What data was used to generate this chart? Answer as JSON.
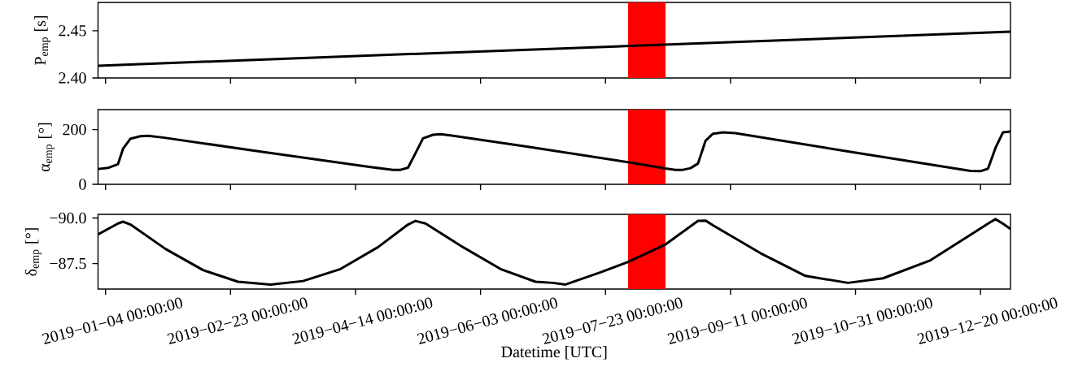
{
  "chart_data": [
    {
      "type": "line",
      "ylabel": "P$_{emp}$ [s]",
      "xlim": [
        "2019-01-01",
        "2020-01-01"
      ],
      "ylim": [
        2.4,
        2.48
      ],
      "xticks": [
        {
          "value": "2019-01-04",
          "label": null
        },
        {
          "value": "2019-02-23",
          "label": null
        },
        {
          "value": "2019-04-14",
          "label": null
        },
        {
          "value": "2019-06-03",
          "label": null
        },
        {
          "value": "2019-07-23",
          "label": null
        },
        {
          "value": "2019-09-11",
          "label": null
        },
        {
          "value": "2019-10-31",
          "label": null
        },
        {
          "value": "2019-12-20",
          "label": null
        }
      ],
      "yticks": [
        {
          "value": 2.4,
          "label": "2.40"
        },
        2.45
      ],
      "tick_labels": "y",
      "x": [
        "2019-01-01",
        "2020-01-01"
      ],
      "series": [
        {
          "color": "#000000",
          "values": [
            2.413,
            2.449
          ]
        }
      ],
      "bands": [
        {
          "axis": "x",
          "from": "2019-08-01",
          "to": "2019-08-16",
          "color": "#ff0000"
        }
      ]
    },
    {
      "type": "line",
      "ylabel": "α$_{emp}$ [°]",
      "xlim": [
        "2019-01-01",
        "2020-01-01"
      ],
      "ylim": [
        0,
        273
      ],
      "xticks": [
        {
          "value": "2019-01-04",
          "label": null
        },
        {
          "value": "2019-02-23",
          "label": null
        },
        {
          "value": "2019-04-14",
          "label": null
        },
        {
          "value": "2019-06-03",
          "label": null
        },
        {
          "value": "2019-07-23",
          "label": null
        },
        {
          "value": "2019-09-11",
          "label": null
        },
        {
          "value": "2019-10-31",
          "label": null
        },
        {
          "value": "2019-12-20",
          "label": null
        }
      ],
      "yticks": [
        0,
        200
      ],
      "tick_labels": "y",
      "x": [
        "2019-01-01",
        "2019-01-05",
        "2019-01-09",
        "2019-01-11",
        "2019-01-14",
        "2019-01-18",
        "2019-01-21",
        "2019-01-27",
        "2019-03-06",
        "2019-04-20",
        "2019-04-29",
        "2019-05-02",
        "2019-05-05",
        "2019-05-08",
        "2019-05-11",
        "2019-05-15",
        "2019-05-18",
        "2019-05-22",
        "2019-06-22",
        "2019-08-01",
        "2019-08-16",
        "2019-08-20",
        "2019-08-23",
        "2019-08-26",
        "2019-08-29",
        "2019-09-01",
        "2019-09-04",
        "2019-09-08",
        "2019-09-13",
        "2019-10-28",
        "2019-12-16",
        "2019-12-20",
        "2019-12-23",
        "2019-12-26",
        "2019-12-29",
        "2020-01-01"
      ],
      "series": [
        {
          "color": "#000000",
          "values": [
            56,
            60,
            74,
            130,
            167,
            176,
            177,
            171,
            121,
            63,
            53,
            53,
            61,
            114,
            168,
            181,
            183,
            179,
            137,
            81,
            58,
            53,
            53,
            59,
            76,
            159,
            185,
            190,
            187,
            120,
            49,
            48,
            57,
            133,
            190,
            193
          ]
        }
      ],
      "bands": [
        {
          "axis": "x",
          "from": "2019-08-01",
          "to": "2019-08-16",
          "color": "#ff0000"
        }
      ]
    },
    {
      "type": "line",
      "xlabel": "Datetime [UTC]",
      "ylabel": "δ$_{emp}$ [°]",
      "xlim": [
        "2019-01-01",
        "2020-01-01"
      ],
      "ylim": [
        -86.1,
        -90.2
      ],
      "xticks": [
        {
          "value": "2019-01-04",
          "label": "2019−01−04 00:00:00"
        },
        {
          "value": "2019-02-23",
          "label": "2019−02−23 00:00:00"
        },
        {
          "value": "2019-04-14",
          "label": "2019−04−14 00:00:00"
        },
        {
          "value": "2019-06-03",
          "label": "2019−06−03 00:00:00"
        },
        {
          "value": "2019-07-23",
          "label": "2019−07−23 00:00:00"
        },
        {
          "value": "2019-09-11",
          "label": "2019−09−11 00:00:00"
        },
        {
          "value": "2019-10-31",
          "label": "2019−10−31 00:00:00"
        },
        {
          "value": "2019-12-20",
          "label": "2019−12−20 00:00:00"
        }
      ],
      "yticks": [
        {
          "value": -90,
          "label": "−90.0"
        },
        {
          "value": -87.5,
          "label": "−87.5"
        }
      ],
      "x": [
        "2019-01-01",
        "2019-01-09",
        "2019-01-11",
        "2019-01-14",
        "2019-01-28",
        "2019-02-12",
        "2019-02-26",
        "2019-03-11",
        "2019-03-24",
        "2019-04-08",
        "2019-04-23",
        "2019-05-05",
        "2019-05-08",
        "2019-05-12",
        "2019-05-27",
        "2019-06-11",
        "2019-06-25",
        "2019-07-02",
        "2019-07-07",
        "2019-07-21",
        "2019-08-01",
        "2019-08-16",
        "2019-08-29",
        "2019-09-01",
        "2019-09-04",
        "2019-09-23",
        "2019-10-11",
        "2019-10-28",
        "2019-11-11",
        "2019-11-30",
        "2019-12-24",
        "2019-12-26",
        "2019-12-29",
        "2020-01-01"
      ],
      "series": [
        {
          "color": "#000000",
          "values": [
            -89.1,
            -89.7,
            -89.8,
            -89.64,
            -88.3,
            -87.14,
            -86.5,
            -86.35,
            -86.54,
            -87.2,
            -88.4,
            -89.64,
            -89.84,
            -89.7,
            -88.4,
            -87.2,
            -86.5,
            -86.44,
            -86.35,
            -87.02,
            -87.59,
            -88.55,
            -89.84,
            -89.86,
            -89.6,
            -88.07,
            -86.82,
            -86.44,
            -86.69,
            -87.68,
            -89.78,
            -89.94,
            -89.69,
            -89.4
          ]
        }
      ],
      "bands": [
        {
          "axis": "x",
          "from": "2019-08-01",
          "to": "2019-08-16",
          "color": "#ff0000"
        }
      ]
    }
  ]
}
